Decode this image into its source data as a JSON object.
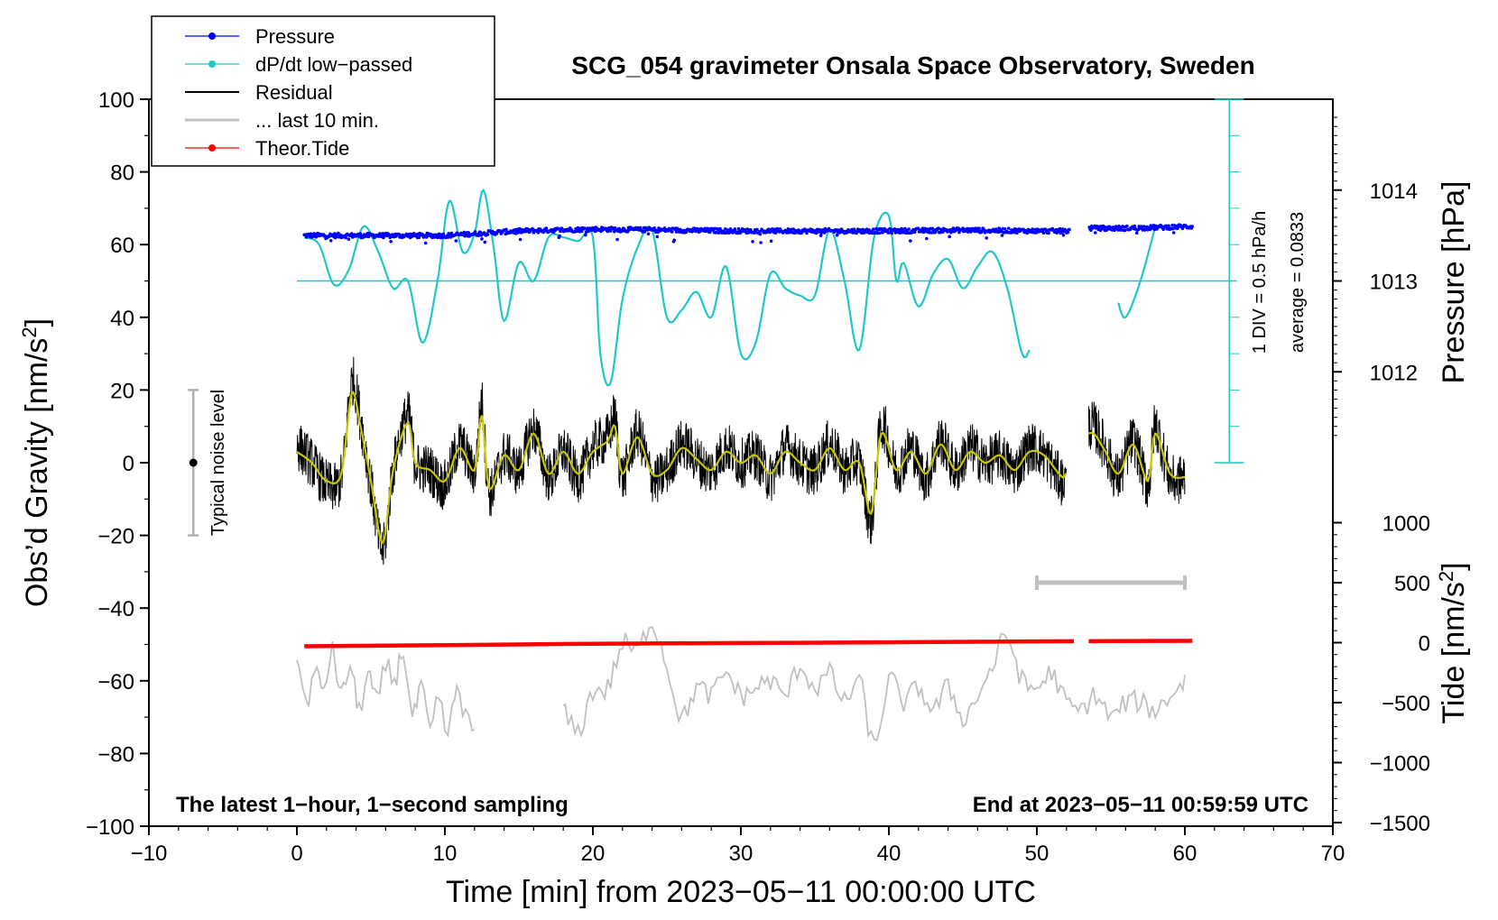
{
  "chart_data": {
    "type": "line",
    "title": "SCG_054 gravimeter Onsala Space Observatory, Sweden",
    "xlabel": "Time [min] from 2023−05−11 00:00:00 UTC",
    "ylabel_left": "Obs’d Gravity [nm/s",
    "ylabel_left_sup": "2",
    "ylabel_left_close": "]",
    "ylabel_right_pressure": "Pressure [hPa]",
    "ylabel_right_tide": "Tide [nm/s",
    "ylabel_right_tide_sup": "2",
    "ylabel_right_tide_close": "]",
    "xlim": [
      -10,
      70
    ],
    "ylim": [
      -100,
      100
    ],
    "x_ticks": [
      "−10",
      "0",
      "10",
      "20",
      "30",
      "40",
      "50",
      "60",
      "70"
    ],
    "y_ticks": [
      "100",
      "80",
      "60",
      "40",
      "20",
      "0",
      "−20",
      "−40",
      "−60",
      "−80",
      "−100"
    ],
    "pressure_ticks": [
      "1014",
      "1013",
      "1012"
    ],
    "pressure_tick_values": [
      1014,
      1013,
      1012
    ],
    "tide_ticks": [
      "1000",
      "500",
      "0",
      "−500",
      "−1000",
      "−1500"
    ],
    "tide_tick_values": [
      1000,
      500,
      0,
      -500,
      -1000,
      -1500
    ],
    "legend": [
      "Pressure",
      "dP/dt low−passed",
      "Residual",
      "... last 10 min.",
      "Theor.Tide"
    ],
    "legend_position": "top-left",
    "noise_label": "Typical noise level",
    "noise_range": [
      -20,
      20
    ],
    "dpdt_scale_label": "1 DIV = 0.5 hPa/h",
    "dpdt_average_label": "average = 0.0833",
    "footer_left": "The latest 1−hour, 1−second sampling",
    "footer_right": "End at 2023−05−11 00:59:59 UTC",
    "last10_range_min": [
      50,
      60
    ],
    "colors": {
      "pressure": "#0000ff",
      "dpdt": "#1ec8c8",
      "residual": "#000000",
      "smoothed": "#c8c800",
      "last10": "#c0c0c0",
      "tide": "#ff0000"
    },
    "pressure_series": {
      "name": "Pressure",
      "x": [
        0.5,
        5,
        10,
        15,
        20,
        25,
        30,
        35,
        40,
        45,
        50,
        52,
        53.5,
        56,
        60.5
      ],
      "y": [
        1013.5,
        1013.5,
        1013.5,
        1013.55,
        1013.57,
        1013.56,
        1013.55,
        1013.55,
        1013.55,
        1013.56,
        1013.55,
        1013.55,
        1013.58,
        1013.58,
        1013.6
      ]
    },
    "dpdt_series": {
      "name": "dP/dt low−passed",
      "segments": [
        {
          "x": [
            0.5,
            1.5,
            2.5,
            3.5,
            4.5,
            5.5,
            6.5,
            7.5,
            8.5,
            9.5,
            10.3,
            11.2,
            12,
            12.6,
            13.3,
            14,
            15,
            16,
            17,
            18,
            19,
            20,
            20.5,
            21.2,
            22,
            23,
            24,
            25,
            26,
            27,
            28,
            29,
            30,
            31,
            32,
            33,
            34,
            35,
            36,
            37,
            38,
            39,
            40,
            40.5,
            41,
            42,
            43,
            44,
            45,
            46,
            47,
            48,
            49,
            49.5
          ],
          "y": [
            62,
            60,
            49,
            53,
            65,
            58,
            48,
            50,
            33,
            50,
            72,
            58,
            63,
            75,
            59,
            39,
            55,
            50,
            62,
            62,
            61,
            62,
            30,
            22,
            45,
            59,
            64,
            40,
            42,
            47,
            40,
            54,
            30,
            33,
            52,
            48,
            46,
            46,
            64,
            50,
            31,
            62,
            68,
            50,
            55,
            43,
            52,
            56,
            48,
            54,
            58,
            48,
            30,
            31
          ]
        },
        {
          "x": [
            55.5,
            56,
            57,
            58
          ],
          "y": [
            44,
            40,
            50,
            65
          ]
        }
      ]
    },
    "residual_series": {
      "name": "Residual",
      "x": [
        0,
        1,
        2,
        3,
        3.7,
        4.3,
        5,
        5.8,
        6.5,
        7.5,
        8,
        9,
        10,
        11,
        12,
        12.5,
        13,
        14,
        15,
        16,
        17,
        18,
        19,
        20,
        21,
        21.5,
        22,
        23,
        24,
        25,
        26,
        27,
        28,
        29,
        30,
        31,
        32,
        33,
        34,
        35,
        36,
        37,
        38,
        38.8,
        39.5,
        40.5,
        41.5,
        42.5,
        43.5,
        44.5,
        45.5,
        46.5,
        47.5,
        48.5,
        49.5,
        50.5,
        51.5,
        52,
        53.5,
        54.5,
        55.5,
        56.5,
        57.5,
        58,
        59,
        60
      ],
      "y": [
        5,
        0,
        -6,
        -4,
        22,
        12,
        -6,
        -24,
        -2,
        13,
        0,
        -2,
        -6,
        5,
        -2,
        16,
        -8,
        2,
        -2,
        9,
        -4,
        3,
        -4,
        4,
        7,
        12,
        -4,
        8,
        -4,
        -2,
        5,
        1,
        -2,
        4,
        0,
        2,
        -4,
        4,
        0,
        -2,
        5,
        -2,
        0,
        -16,
        10,
        -2,
        4,
        -4,
        6,
        -2,
        4,
        0,
        2,
        -2,
        4,
        2,
        -4,
        -4,
        10,
        5,
        -4,
        6,
        -6,
        10,
        -4,
        -4
      ]
    },
    "smoothed_series": {
      "name": "Residual (smoothed)",
      "x": [
        0,
        1,
        2,
        3,
        3.7,
        4.3,
        5,
        5.8,
        6.5,
        7.5,
        8,
        9,
        10,
        11,
        12,
        12.5,
        13,
        14,
        15,
        16,
        17,
        18,
        19,
        20,
        21,
        21.5,
        22,
        23,
        24,
        25,
        26,
        27,
        28,
        29,
        30,
        31,
        32,
        33,
        34,
        35,
        36,
        37,
        38,
        38.8,
        39.5,
        40.5,
        41.5,
        42.5,
        43.5,
        44.5,
        45.5,
        46.5,
        47.5,
        48.5,
        49.5,
        50.5,
        51.5,
        52,
        53.5,
        54.5,
        55.5,
        56.5,
        57.5,
        58,
        59,
        60
      ],
      "y": [
        3,
        0,
        -5,
        -3,
        19,
        10,
        -5,
        -22,
        -2,
        11,
        0,
        -2,
        -5,
        4,
        -2,
        13,
        -7,
        2,
        -2,
        8,
        -3,
        3,
        -3,
        3,
        6,
        10,
        -3,
        7,
        -3,
        -2,
        4,
        1,
        -2,
        3,
        0,
        2,
        -3,
        3,
        0,
        -2,
        4,
        -2,
        0,
        -14,
        8,
        -2,
        3,
        -3,
        5,
        -2,
        3,
        0,
        2,
        -2,
        3,
        2,
        -3,
        -3,
        8,
        4,
        -3,
        5,
        -5,
        8,
        -3,
        -4
      ]
    },
    "last10_series": {
      "name": "... last 10 min.",
      "segments": [
        {
          "x": [
            0,
            0.6,
            1.2,
            1.8,
            2.4,
            3,
            3.6,
            4.2,
            4.8,
            5.4,
            6,
            6.6,
            7.2,
            7.8,
            8.4,
            9,
            9.6,
            10.2,
            10.8,
            11.4,
            12
          ],
          "y": [
            -52,
            -66,
            -58,
            -62,
            -52,
            -64,
            -56,
            -68,
            -58,
            -66,
            -56,
            -60,
            -52,
            -70,
            -62,
            -74,
            -65,
            -75,
            -62,
            -70,
            -74
          ]
        },
        {
          "x": [
            18,
            19,
            20,
            21,
            22,
            23,
            24,
            25,
            26,
            27,
            28,
            29,
            30,
            31,
            32,
            33,
            34,
            35,
            36,
            37,
            38,
            39,
            40,
            41,
            42,
            43,
            44,
            45,
            46,
            47,
            48,
            49,
            50,
            51,
            52,
            53,
            54,
            55,
            56,
            57,
            58,
            59,
            60
          ],
          "y": [
            -68,
            -74,
            -63,
            -62,
            -50,
            -52,
            -44,
            -56,
            -70,
            -62,
            -64,
            -58,
            -64,
            -62,
            -60,
            -64,
            -56,
            -62,
            -58,
            -66,
            -60,
            -78,
            -60,
            -66,
            -62,
            -68,
            -62,
            -70,
            -64,
            -56,
            -48,
            -60,
            -62,
            -58,
            -66,
            -68,
            -64,
            -70,
            -66,
            -66,
            -68,
            -64,
            -60
          ]
        }
      ]
    },
    "tide_series": {
      "name": "Theor.Tide",
      "segments": [
        {
          "x": [
            0.5,
            10,
            20,
            30,
            40,
            52.5
          ],
          "y": [
            -50.5,
            -50.2,
            -49.8,
            -49.6,
            -49.4,
            -49.1
          ]
        },
        {
          "x": [
            53.5,
            60.5
          ],
          "y": [
            -49.1,
            -49.0
          ]
        }
      ]
    }
  }
}
